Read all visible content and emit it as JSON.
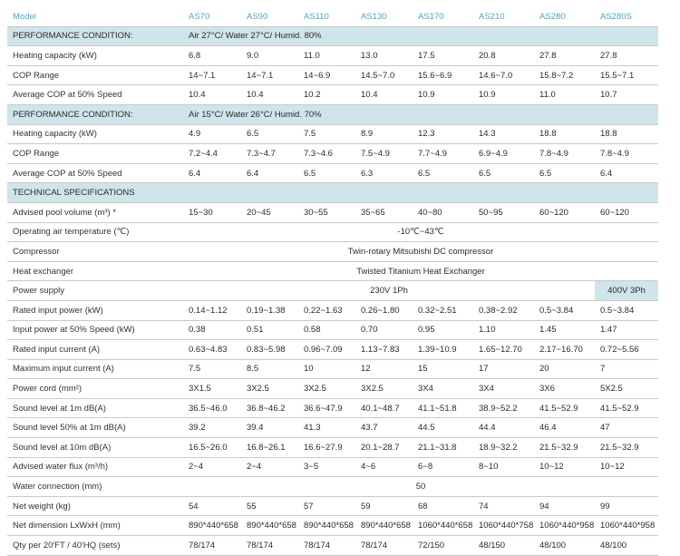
{
  "header": {
    "model_label": "Model",
    "models": [
      "AS70",
      "AS90",
      "AS110",
      "AS130",
      "AS170",
      "AS210",
      "AS280",
      "AS280S"
    ]
  },
  "sections": [
    {
      "title": "PERFORMANCE CONDITION:",
      "condition": "Air 27°C/ Water 27°C/ Humid. 80%",
      "rows": [
        {
          "label": "Heating capacity (kW)",
          "values": [
            "6.8",
            "9.0",
            "11.0",
            "13.0",
            "17.5",
            "20.8",
            "27.8",
            "27.8"
          ]
        },
        {
          "label": "COP Range",
          "values": [
            "14~7.1",
            "14~7.1",
            "14~6.9",
            "14.5~7.0",
            "15.6~6.9",
            "14.6~7.0",
            "15.8~7.2",
            "15.5~7.1"
          ]
        },
        {
          "label": "Average COP at 50% Speed",
          "values": [
            "10.4",
            "10.4",
            "10.2",
            "10.4",
            "10.9",
            "10.9",
            "11.0",
            "10.7"
          ]
        }
      ]
    },
    {
      "title": "PERFORMANCE CONDITION:",
      "condition": "Air 15°C/ Water 26°C/ Humid. 70%",
      "rows": [
        {
          "label": "Heating capacity (kW)",
          "values": [
            "4.9",
            "6.5",
            "7.5",
            "8.9",
            "12.3",
            "14.3",
            "18.8",
            "18.8"
          ]
        },
        {
          "label": "COP Range",
          "values": [
            "7.2~4.4",
            "7.3~4.7",
            "7.3~4.6",
            "7.5~4.9",
            "7.7~4.9",
            "6.9~4.9",
            "7.8~4.9",
            "7.8~4.9"
          ]
        },
        {
          "label": "Average COP at 50% Speed",
          "values": [
            "6.4",
            "6.4",
            "6.5",
            "6.3",
            "6.5",
            "6.5",
            "6.5",
            "6.4"
          ]
        }
      ]
    },
    {
      "title": "TECHNICAL SPECIFICATIONS",
      "condition": "",
      "rows": [
        {
          "label": "Advised pool volume (m³) *",
          "values": [
            "15~30",
            "20~45",
            "30~55",
            "35~65",
            "40~80",
            "50~95",
            "60~120",
            "60~120"
          ]
        },
        {
          "label": "Operating air temperature (℃)",
          "span": "-10℃~43℃"
        },
        {
          "label": "Compressor",
          "span": "Twin-rotary Mitsubishi DC compressor"
        },
        {
          "label": "Heat exchanger",
          "span": "Twisted Titanium Heat Exchanger"
        },
        {
          "label": "Power supply",
          "span": "230V 1Ph",
          "last": "400V 3Ph"
        },
        {
          "label": "Rated input power (kW)",
          "values": [
            "0.14~1.12",
            "0.19~1.38",
            "0.22~1.63",
            "0.26~1.80",
            "0.32~2.51",
            "0.38~2.92",
            "0.5~3.84",
            "0.5~3.84"
          ]
        },
        {
          "label": "Input power at 50% Speed (kW)",
          "values": [
            "0.38",
            "0.51",
            "0.58",
            "0.70",
            "0.95",
            "1.10",
            "1.45",
            "1.47"
          ]
        },
        {
          "label": "Rated input current (A)",
          "values": [
            "0.63~4.83",
            "0.83~5.98",
            "0.96~7.09",
            "1.13~7.83",
            "1.39~10.9",
            "1.65~12.70",
            "2.17~16.70",
            "0.72~5.56"
          ]
        },
        {
          "label": "Maximum input current (A)",
          "values": [
            "7.5",
            "8.5",
            "10",
            "12",
            "15",
            "17",
            "20",
            "7"
          ]
        },
        {
          "label": "Power cord (mm²)",
          "values": [
            "3X1.5",
            "3X2.5",
            "3X2.5",
            "3X2.5",
            "3X4",
            "3X4",
            "3X6",
            "5X2.5"
          ]
        },
        {
          "label": "Sound level  at 1m dB(A)",
          "values": [
            "36.5~46.0",
            "36.8~46.2",
            "36.6~47.9",
            "40.1~48.7",
            "41.1~51.8",
            "38.9~52.2",
            "41.5~52.9",
            "41.5~52.9"
          ]
        },
        {
          "label": "Sound level  50% at 1m dB(A)",
          "values": [
            "39.2",
            "39.4",
            "41.3",
            "43.7",
            "44.5",
            "44.4",
            "46.4",
            "47"
          ]
        },
        {
          "label": "Sound level at 10m dB(A)",
          "values": [
            "16.5~26.0",
            "16.8~26.1",
            "16.6~27.9",
            "20.1~28.7",
            "21.1~31.8",
            "18.9~32.2",
            "21.5~32.9",
            "21.5~32.9"
          ]
        },
        {
          "label": "Advised water flux (m³/h)",
          "values": [
            "2~4",
            "2~4",
            "3~5",
            "4~6",
            "6~8",
            "8~10",
            "10~12",
            "10~12"
          ]
        },
        {
          "label": "Water connection (mm)",
          "span": "50"
        },
        {
          "label": "Net weight (kg)",
          "values": [
            "54",
            "55",
            "57",
            "59",
            "68",
            "74",
            "94",
            "99"
          ]
        },
        {
          "label": "Net dimension LxWxH (mm)",
          "values": [
            "890*440*658",
            "890*440*658",
            "890*440*658",
            "890*440*658",
            "1060*440*658",
            "1060*440*758",
            "1060*440*958",
            "1060*440*958"
          ]
        },
        {
          "label": "Qty per 20′FT / 40′HQ (sets)",
          "values": [
            "78/174",
            "78/174",
            "78/174",
            "78/174",
            "72/150",
            "48/150",
            "48/100",
            "48/100"
          ]
        }
      ]
    }
  ]
}
